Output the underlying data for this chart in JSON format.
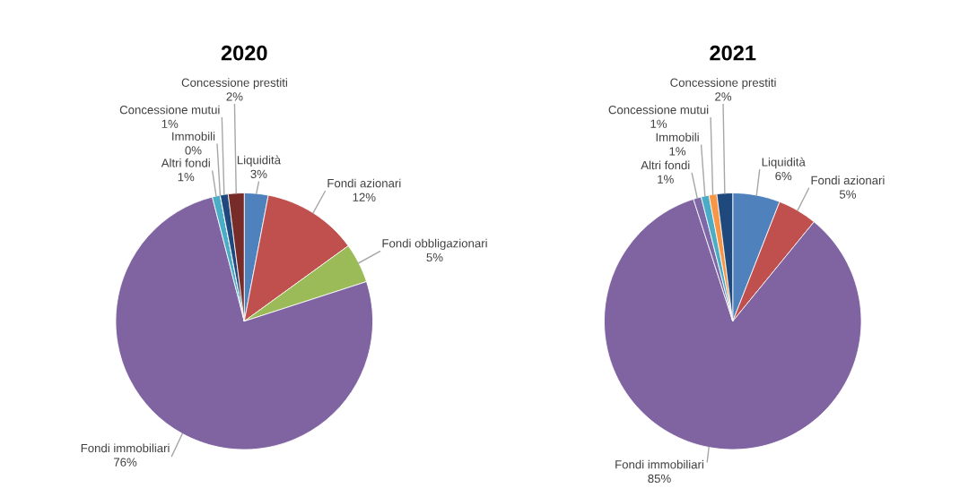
{
  "chart_data": [
    {
      "type": "pie",
      "title": "2020",
      "categories": [
        "Liquidità",
        "Fondi azionari",
        "Fondi obbligazionari",
        "Fondi immobiliari",
        "Altri fondi",
        "Immobili",
        "Concessione mutui",
        "Concessione prestiti"
      ],
      "values": [
        3,
        12,
        5,
        76,
        1,
        0,
        1,
        2
      ],
      "value_labels": [
        "3%",
        "12%",
        "5%",
        "76%",
        "1%",
        "0%",
        "1%",
        "2%"
      ],
      "colors": [
        "#4f81bd",
        "#c0504d",
        "#9bbb59",
        "#8064a2",
        "#4bacc6",
        "#f79646",
        "#1f497d",
        "#772c2a"
      ]
    },
    {
      "type": "pie",
      "title": "2021",
      "categories": [
        "Liquidità",
        "Fondi azionari",
        "Fondi immobiliari",
        "Altri fondi",
        "Immobili",
        "Concessione mutui",
        "Concessione prestiti"
      ],
      "values": [
        6,
        5,
        85,
        1,
        1,
        1,
        2
      ],
      "value_labels": [
        "6%",
        "5%",
        "85%",
        "1%",
        "1%",
        "1%",
        "2%"
      ],
      "colors": [
        "#4f81bd",
        "#c0504d",
        "#8064a2",
        "#7d68a8",
        "#4bacc6",
        "#f79646",
        "#1f497d"
      ]
    }
  ]
}
